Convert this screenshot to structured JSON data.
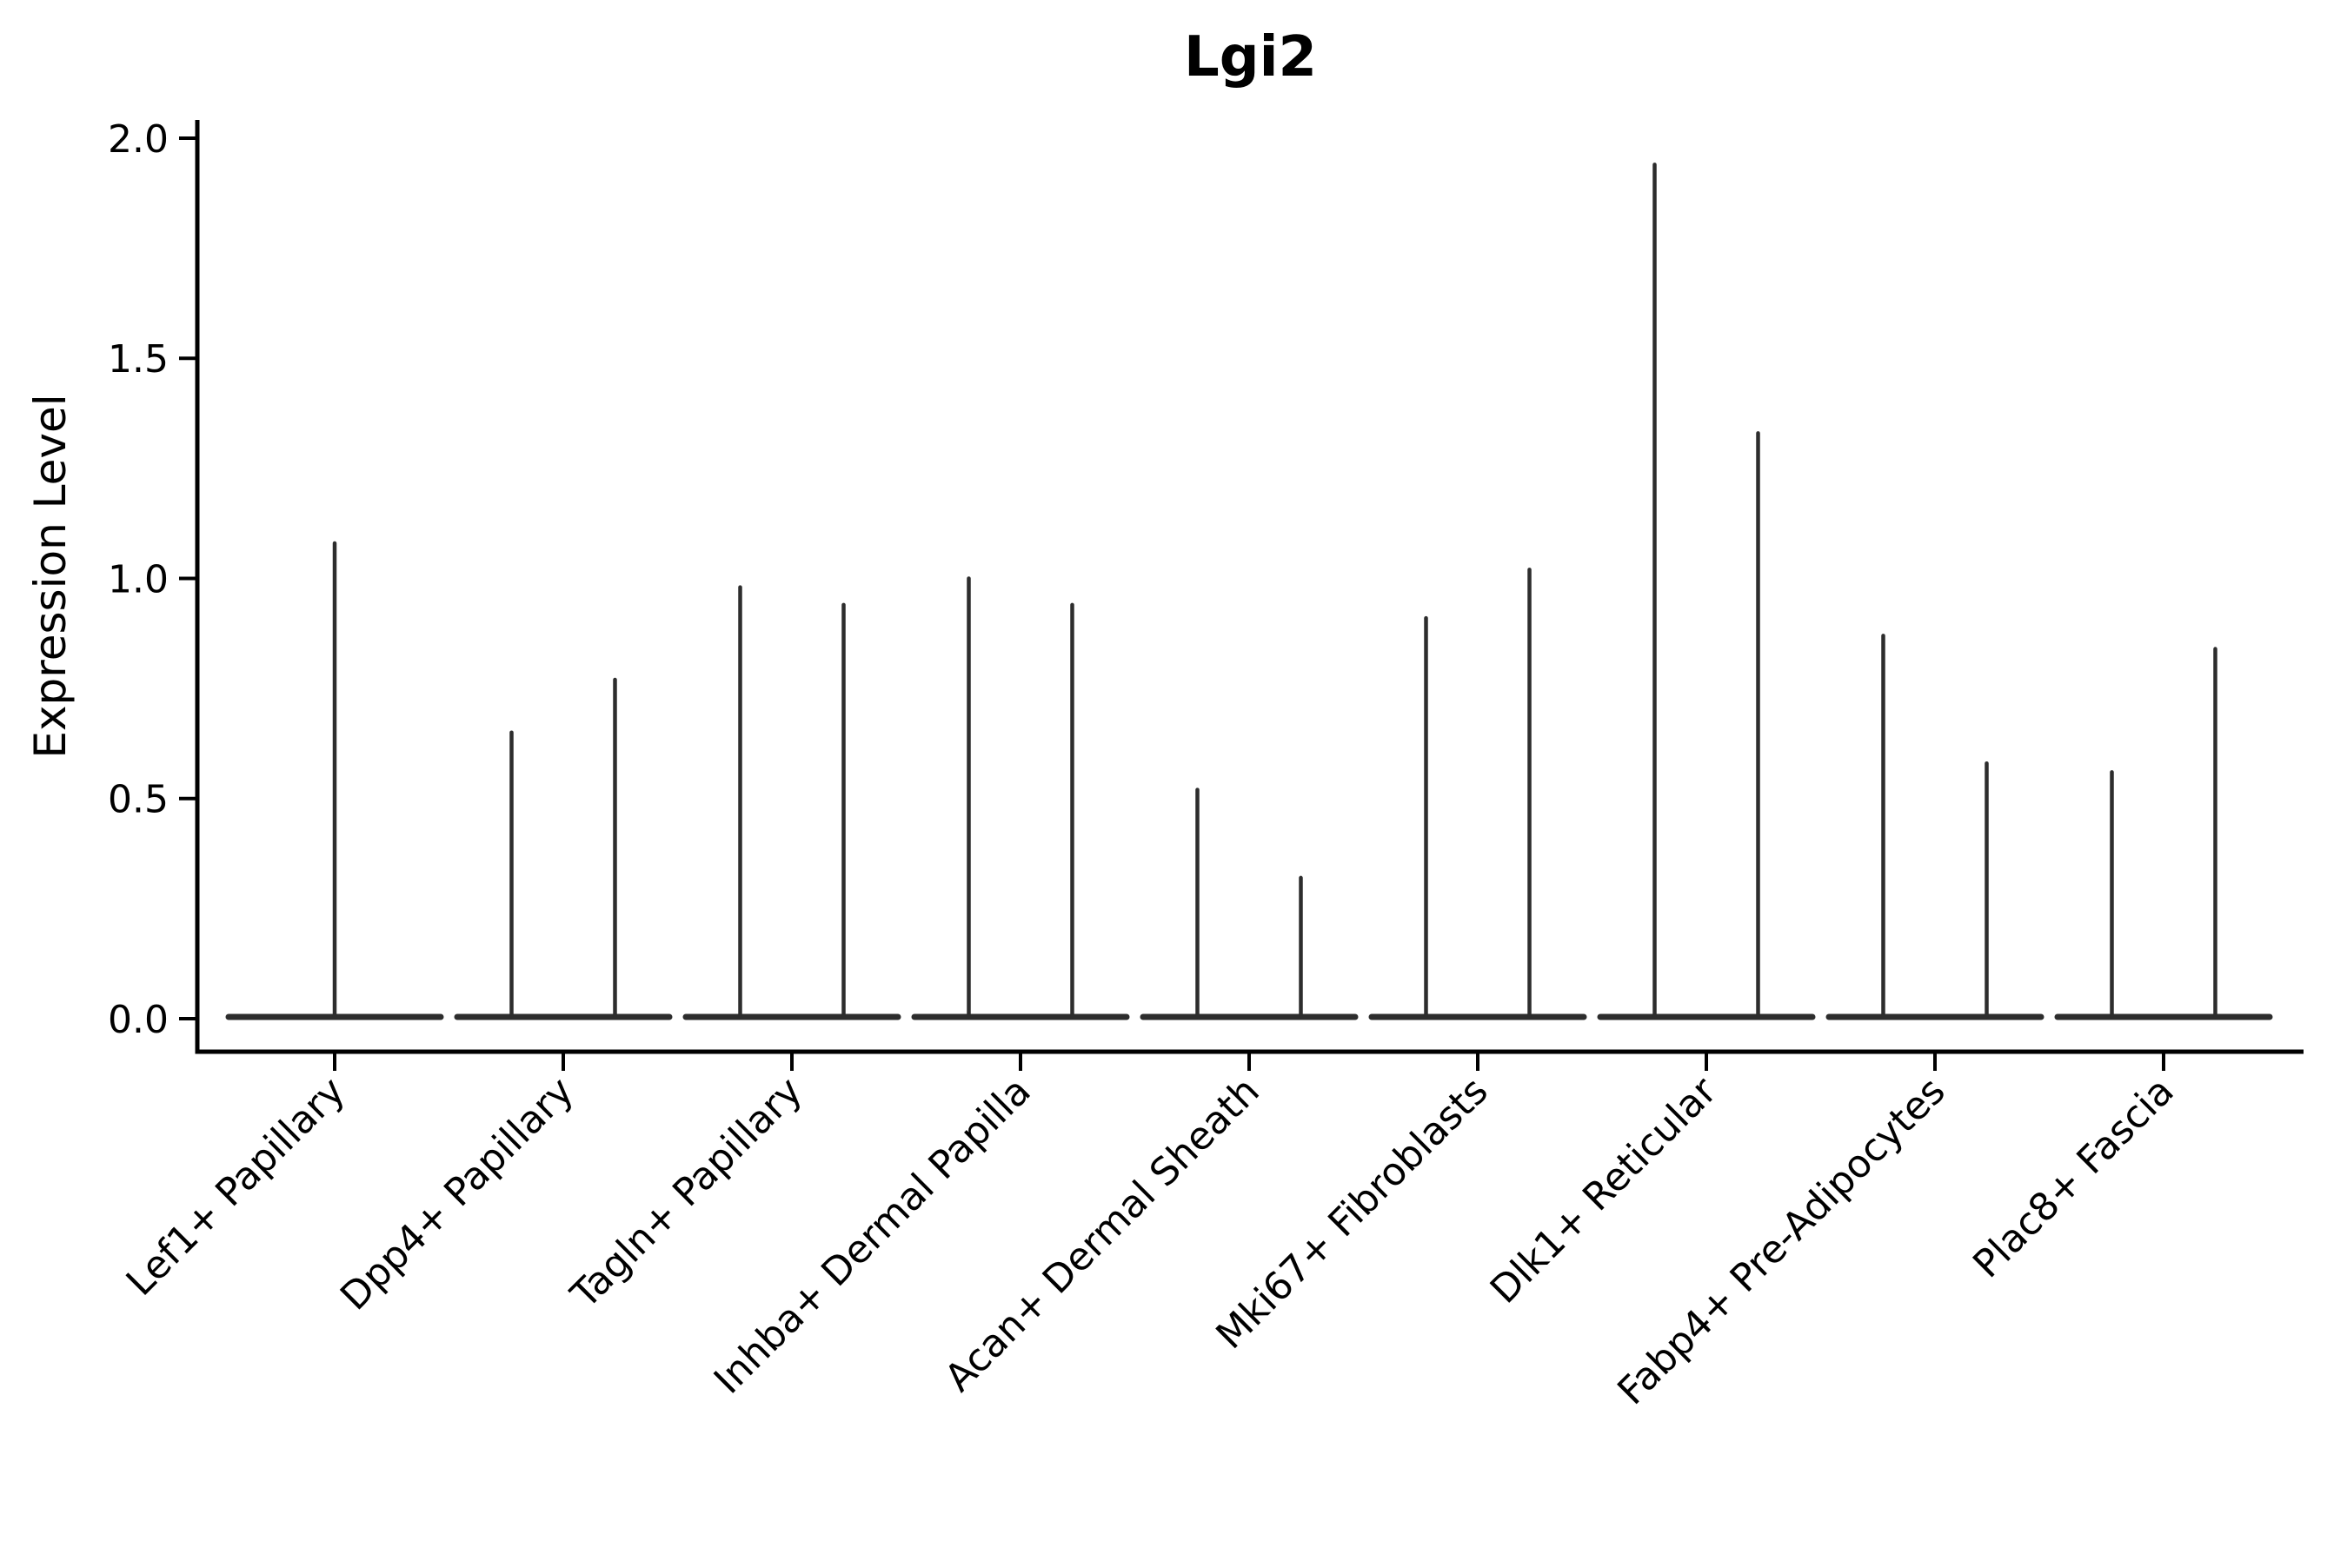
{
  "chart_data": {
    "type": "violin",
    "title": "Lgi2",
    "ylabel": "Expression Level",
    "xlabel": "",
    "ylim": [
      0.0,
      2.0
    ],
    "yticks": [
      "0.0",
      "0.5",
      "1.0",
      "1.5",
      "2.0"
    ],
    "ytick_values": [
      0.0,
      0.5,
      1.0,
      1.5,
      2.0
    ],
    "grid": false,
    "legend": "none",
    "line_color": "#2d2d2d",
    "axis_color": "#000000",
    "categories": [
      {
        "label": "Lef1+ Papillary",
        "violins": [
          {
            "side": "center",
            "max": 1.08
          }
        ]
      },
      {
        "label": "Dpp4+ Papillary",
        "violins": [
          {
            "side": "left",
            "max": 0.65
          },
          {
            "side": "right",
            "max": 0.77
          }
        ]
      },
      {
        "label": "Tagln+ Papillary",
        "violins": [
          {
            "side": "left",
            "max": 0.98
          },
          {
            "side": "right",
            "max": 0.94
          }
        ]
      },
      {
        "label": "Inhba+ Dermal Papilla",
        "violins": [
          {
            "side": "left",
            "max": 1.0
          },
          {
            "side": "right",
            "max": 0.94
          }
        ]
      },
      {
        "label": "Acan+ Dermal Sheath",
        "violins": [
          {
            "side": "left",
            "max": 0.52
          },
          {
            "side": "right",
            "max": 0.32
          }
        ]
      },
      {
        "label": "Mki67+ Fibroblasts",
        "violins": [
          {
            "side": "left",
            "max": 0.91
          },
          {
            "side": "right",
            "max": 1.02
          }
        ]
      },
      {
        "label": "Dlk1+ Reticular",
        "violins": [
          {
            "side": "left",
            "max": 1.94
          },
          {
            "side": "right",
            "max": 1.33
          }
        ]
      },
      {
        "label": "Fabp4+ Pre-Adipocytes",
        "violins": [
          {
            "side": "left",
            "max": 0.87
          },
          {
            "side": "right",
            "max": 0.58
          }
        ]
      },
      {
        "label": "Plac8+ Fascia",
        "violins": [
          {
            "side": "left",
            "max": 0.56
          },
          {
            "side": "right",
            "max": 0.84
          }
        ]
      }
    ]
  }
}
